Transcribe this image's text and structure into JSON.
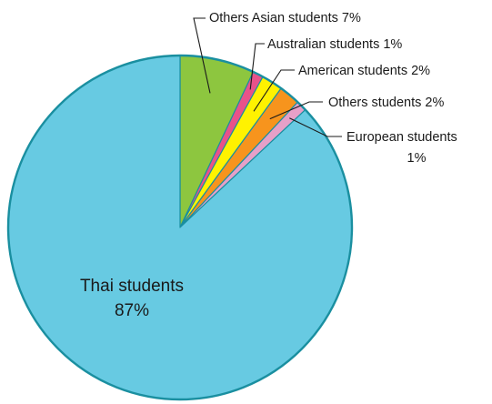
{
  "chart_data": {
    "type": "pie",
    "title": "",
    "slices": [
      {
        "name": "Others Asian students",
        "value": 7,
        "label_lines": [
          "Others Asian students 7%"
        ],
        "color": "#8dc63f"
      },
      {
        "name": "Australian students",
        "value": 1,
        "label_lines": [
          "Australian students 1%"
        ],
        "color": "#e8528a"
      },
      {
        "name": "American students",
        "value": 2,
        "label_lines": [
          "American students 2%"
        ],
        "color": "#fff200"
      },
      {
        "name": "Others students",
        "value": 2,
        "label_lines": [
          "Others students 2%"
        ],
        "color": "#f7941d"
      },
      {
        "name": "European students",
        "value": 1,
        "label_lines": [
          "European students",
          "1%"
        ],
        "color": "#e6a0c8"
      },
      {
        "name": "Thai students",
        "value": 87,
        "label_lines": [
          "Thai students",
          "87%"
        ],
        "color": "#67cae2"
      }
    ],
    "start_angle_deg": 0,
    "direction": "clockwise",
    "border_color": "#1a8fa0"
  }
}
